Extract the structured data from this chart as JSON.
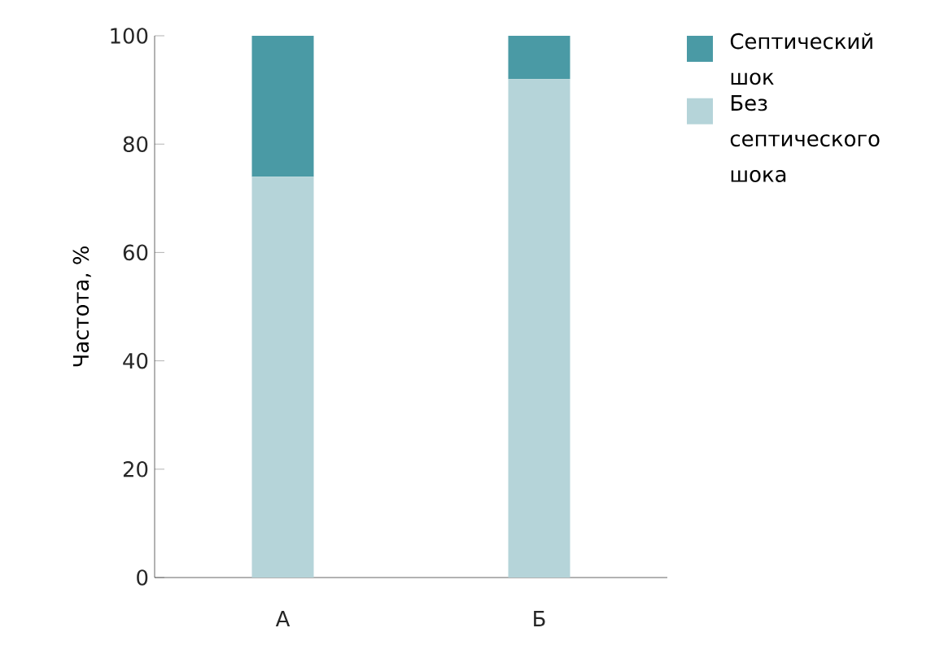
{
  "chart_data": {
    "type": "bar",
    "stacked": true,
    "categories": [
      "А",
      "Б"
    ],
    "ylabel": "Частота, %",
    "ylim": [
      0,
      100
    ],
    "yticks": [
      0,
      20,
      40,
      60,
      80,
      100
    ],
    "legend": "top right",
    "series": [
      {
        "name": "Без септического шока",
        "color": "#b5d4d9",
        "values": [
          74,
          92
        ]
      },
      {
        "name": "Септический шок",
        "color": "#4a9aa5",
        "values": [
          26,
          8
        ]
      }
    ]
  }
}
